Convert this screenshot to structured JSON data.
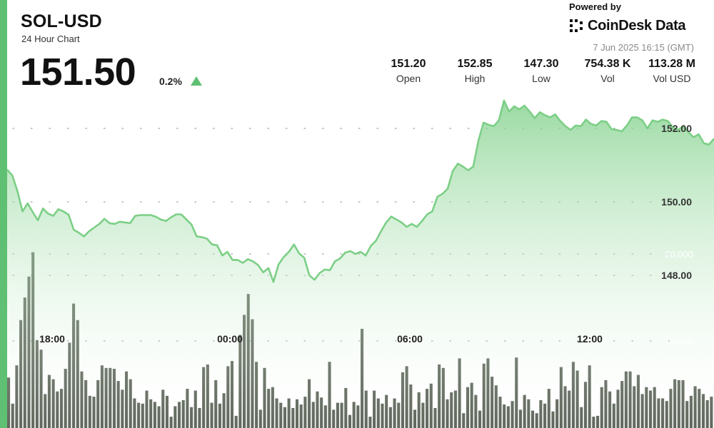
{
  "header": {
    "symbol": "SOL-USD",
    "subtitle": "24 Hour Chart",
    "price": "151.50",
    "change": "0.2%"
  },
  "branding": {
    "powered_by": "Powered by",
    "name": "CoinDesk Data",
    "timestamp": "7 Jun 2025 16:15 (GMT)"
  },
  "stats": [
    {
      "value": "151.20",
      "label": "Open"
    },
    {
      "value": "152.85",
      "label": "High"
    },
    {
      "value": "147.30",
      "label": "Low"
    },
    {
      "value": "754.38 K",
      "label": "Vol"
    },
    {
      "value": "113.28 M",
      "label": "Vol USD"
    }
  ],
  "colors": {
    "accent": "#5fbf72",
    "line": "#7ccf86",
    "fill_top": "#7ccf86",
    "volume_bar": "#5a6256",
    "grid": "#a0a0a0"
  },
  "chart_data": [
    {
      "type": "area",
      "title": "",
      "xlabel": "",
      "ylabel": "",
      "x_ticks": [
        "18:00",
        "00:00",
        "06:00",
        "12:00"
      ],
      "y_ticks": [
        "148.00",
        "150.00",
        "152.00"
      ],
      "y_tick_values": [
        148,
        150,
        152
      ],
      "grid": true,
      "series": [
        {
          "values": [
            150.88,
            150.72,
            150.3,
            149.74,
            149.96,
            149.72,
            149.5,
            149.82,
            149.68,
            149.62,
            149.8,
            149.74,
            149.65,
            149.24,
            149.16,
            149.06,
            149.2,
            149.3,
            149.4,
            149.54,
            149.42,
            149.4,
            149.46,
            149.44,
            149.42,
            149.62,
            149.64,
            149.64,
            149.64,
            149.6,
            149.52,
            149.48,
            149.58,
            149.66,
            149.66,
            149.52,
            149.38,
            149.06,
            149.04,
            149.0,
            148.84,
            148.82,
            148.54,
            148.64,
            148.42,
            148.42,
            148.34,
            148.44,
            148.38,
            148.28,
            148.08,
            148.2,
            147.82,
            148.3,
            148.5,
            148.64,
            148.84,
            148.6,
            148.48,
            148.0,
            147.88,
            148.06,
            148.16,
            148.14,
            148.38,
            148.46,
            148.62,
            148.66,
            148.58,
            148.64,
            148.54,
            148.8,
            148.94,
            149.2,
            149.44,
            149.6,
            149.52,
            149.44,
            149.32,
            149.4,
            149.32,
            149.48,
            149.66,
            149.74,
            150.14,
            150.22,
            150.36,
            150.84,
            151.04,
            150.96,
            150.86,
            150.96,
            151.66,
            152.16,
            152.1,
            152.06,
            152.22,
            152.76,
            152.46,
            152.6,
            152.52,
            152.62,
            152.46,
            152.28,
            152.44,
            152.36,
            152.3,
            152.38,
            152.2,
            152.06,
            151.96,
            152.08,
            152.06,
            152.24,
            152.12,
            152.08,
            152.2,
            152.18,
            151.98,
            151.96,
            151.92,
            152.08,
            152.3,
            152.3,
            152.22,
            152.0,
            152.22,
            152.18,
            152.24,
            152.2,
            152.02,
            151.96,
            152.06,
            151.9,
            151.76,
            151.84,
            151.6,
            151.56,
            151.72
          ],
          "x_range_note": "ends at 16:15"
        }
      ]
    },
    {
      "type": "bar",
      "title": "",
      "y_ticks": [
        "10,000",
        "20,000"
      ],
      "y_tick_values": [
        10000,
        20000
      ],
      "series": [
        {
          "values": [
            5800,
            2800,
            7200,
            12400,
            15000,
            17400,
            20200,
            10100,
            9000,
            3900,
            6100,
            5600,
            4200,
            4500,
            6800,
            9800,
            14300,
            12400,
            6500,
            5500,
            3700,
            3600,
            5500,
            7200,
            6900,
            6900,
            6800,
            5400,
            4400,
            6500,
            5600,
            3400,
            2900,
            2800,
            4300,
            3300,
            3000,
            2500,
            4400,
            3700,
            1300,
            2500,
            3000,
            3200,
            4500,
            2400,
            4300,
            2300,
            7000,
            7300,
            2900,
            5500,
            2800,
            4000,
            7100,
            7700,
            1400,
            10700,
            13000,
            15400,
            12500,
            7600,
            2100,
            6900,
            4500,
            4700,
            3400,
            2900,
            2400,
            3400,
            2300,
            3300,
            2700,
            3600,
            5600,
            3000,
            4200,
            3500,
            2600,
            7600,
            2100,
            2900,
            2900,
            4600,
            1500,
            3000,
            2600,
            11400,
            4300,
            1300,
            4300,
            3400,
            2800,
            3800,
            2400,
            3400,
            2900,
            6400,
            7100,
            5000,
            2100,
            4100,
            2900,
            4500,
            5100,
            2300,
            7300,
            6900,
            3300,
            4100,
            4300,
            8000,
            1700,
            4700,
            5200,
            3800,
            2000,
            7400,
            8000,
            5900,
            4900,
            3600,
            2700,
            2500,
            3100,
            8100,
            2100,
            3800,
            3300,
            2000,
            1700,
            3200,
            2800,
            4500,
            1900,
            3300,
            7000,
            4800,
            4300,
            7600,
            6600,
            2400,
            5300,
            7200,
            1300,
            1400,
            4700,
            5500,
            4200,
            2800,
            4400,
            5400,
            6500,
            6500,
            4800,
            6100,
            3900,
            4700,
            4300,
            4700,
            3400,
            3400,
            3100,
            4500,
            5600,
            5500,
            5500,
            3100,
            3700,
            4800,
            4500,
            3900,
            3200,
            3600
          ]
        }
      ]
    }
  ]
}
